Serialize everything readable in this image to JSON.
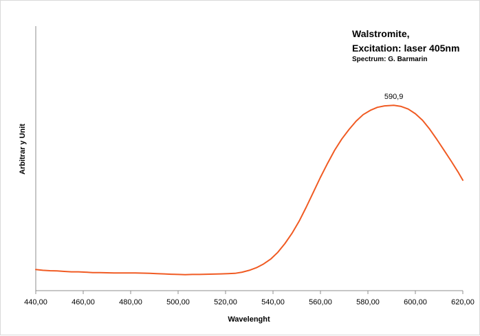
{
  "chart_data": {
    "type": "line",
    "title_line1": "Walstromite,",
    "title_line2": "Excitation: laser 405nm",
    "subtitle": "Spectrum: G. Barmarin",
    "xlabel": "Wavelenght",
    "ylabel": "Arbitrar y Unit",
    "xlim": [
      440,
      620
    ],
    "ylim": [
      0,
      100
    ],
    "xticks": [
      440,
      460,
      480,
      500,
      520,
      540,
      560,
      580,
      600,
      620
    ],
    "xtick_labels": [
      "440,00",
      "460,00",
      "480,00",
      "500,00",
      "520,00",
      "540,00",
      "560,00",
      "580,00",
      "600,00",
      "620,00"
    ],
    "grid": false,
    "legend": "none",
    "series_color": "#f05a22",
    "peak": {
      "x": 590.9,
      "y": 95.5,
      "label": "590,9"
    },
    "series": [
      {
        "x": [
          440,
          443,
          446,
          449,
          452,
          455,
          458,
          461,
          464,
          467,
          470,
          473,
          476,
          479,
          482,
          485,
          488,
          491,
          494,
          497,
          500,
          503,
          506,
          509,
          512,
          515,
          518,
          521,
          524,
          527,
          530,
          533,
          536,
          539,
          542,
          545,
          548,
          551,
          554,
          557,
          560,
          563,
          566,
          569,
          572,
          575,
          578,
          581,
          584,
          587,
          590.9,
          594,
          597,
          600,
          603,
          606,
          609,
          612,
          615,
          618,
          620
        ],
        "y": [
          7.6,
          7.2,
          7.0,
          6.9,
          6.6,
          6.4,
          6.4,
          6.2,
          6.0,
          6.0,
          5.9,
          5.8,
          5.8,
          5.8,
          5.8,
          5.7,
          5.6,
          5.4,
          5.3,
          5.1,
          5.0,
          4.9,
          5.0,
          5.0,
          5.1,
          5.2,
          5.3,
          5.4,
          5.6,
          6.2,
          7.2,
          8.6,
          10.6,
          13.2,
          16.8,
          21.5,
          27.0,
          33.5,
          41.0,
          49.0,
          57.0,
          64.5,
          71.5,
          77.5,
          82.5,
          87.0,
          90.5,
          92.8,
          94.4,
          95.2,
          95.5,
          94.9,
          93.5,
          91.0,
          87.5,
          82.8,
          77.4,
          71.6,
          65.8,
          59.8,
          55.4
        ]
      }
    ]
  }
}
